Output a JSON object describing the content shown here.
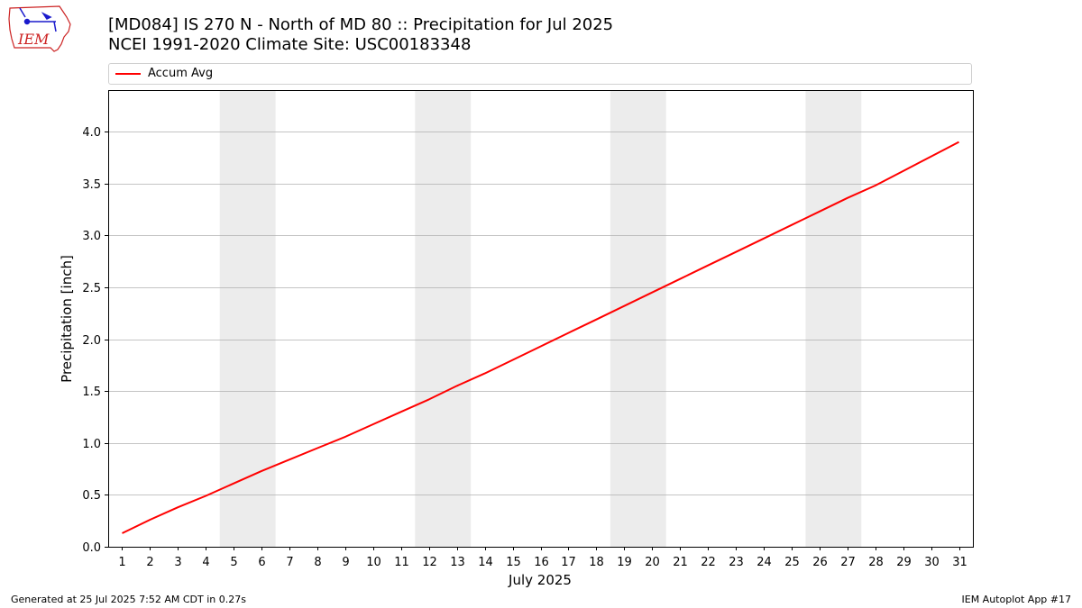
{
  "header": {
    "title_line1": "[MD084] IS 270 N - North of MD 80  :: Precipitation for Jul 2025",
    "title_line2": "NCEI 1991-2020 Climate Site: USC00183348"
  },
  "logo": {
    "text": "IEM"
  },
  "footer": {
    "left": "Generated at 25 Jul 2025 7:52 AM CDT in 0.27s",
    "right": "IEM Autoplot App #17"
  },
  "colors": {
    "series": "#ff0000",
    "weekend_band": "#ececec",
    "grid": "#b0b0b0"
  },
  "chart_data": {
    "type": "line",
    "xlabel": "July 2025",
    "ylabel": "Precipitation [inch]",
    "xlim": [
      0.5,
      31.5
    ],
    "ylim": [
      0,
      4.4
    ],
    "yticks": [
      0.0,
      0.5,
      1.0,
      1.5,
      2.0,
      2.5,
      3.0,
      3.5,
      4.0
    ],
    "grid": "horizontal",
    "legend_position": "top",
    "shaded_bands": [
      [
        4.5,
        6.5
      ],
      [
        11.5,
        13.5
      ],
      [
        18.5,
        20.5
      ],
      [
        25.5,
        27.5
      ]
    ],
    "x": [
      1,
      2,
      3,
      4,
      5,
      6,
      7,
      8,
      9,
      10,
      11,
      12,
      13,
      14,
      15,
      16,
      17,
      18,
      19,
      20,
      21,
      22,
      23,
      24,
      25,
      26,
      27,
      28,
      29,
      30,
      31
    ],
    "series": [
      {
        "name": "Accum Avg",
        "values": [
          0.13,
          0.26,
          0.38,
          0.49,
          0.61,
          0.73,
          0.84,
          0.95,
          1.06,
          1.18,
          1.3,
          1.42,
          1.55,
          1.67,
          1.8,
          1.93,
          2.06,
          2.19,
          2.32,
          2.45,
          2.58,
          2.71,
          2.84,
          2.97,
          3.1,
          3.23,
          3.36,
          3.48,
          3.62,
          3.76,
          3.9
        ]
      }
    ]
  }
}
